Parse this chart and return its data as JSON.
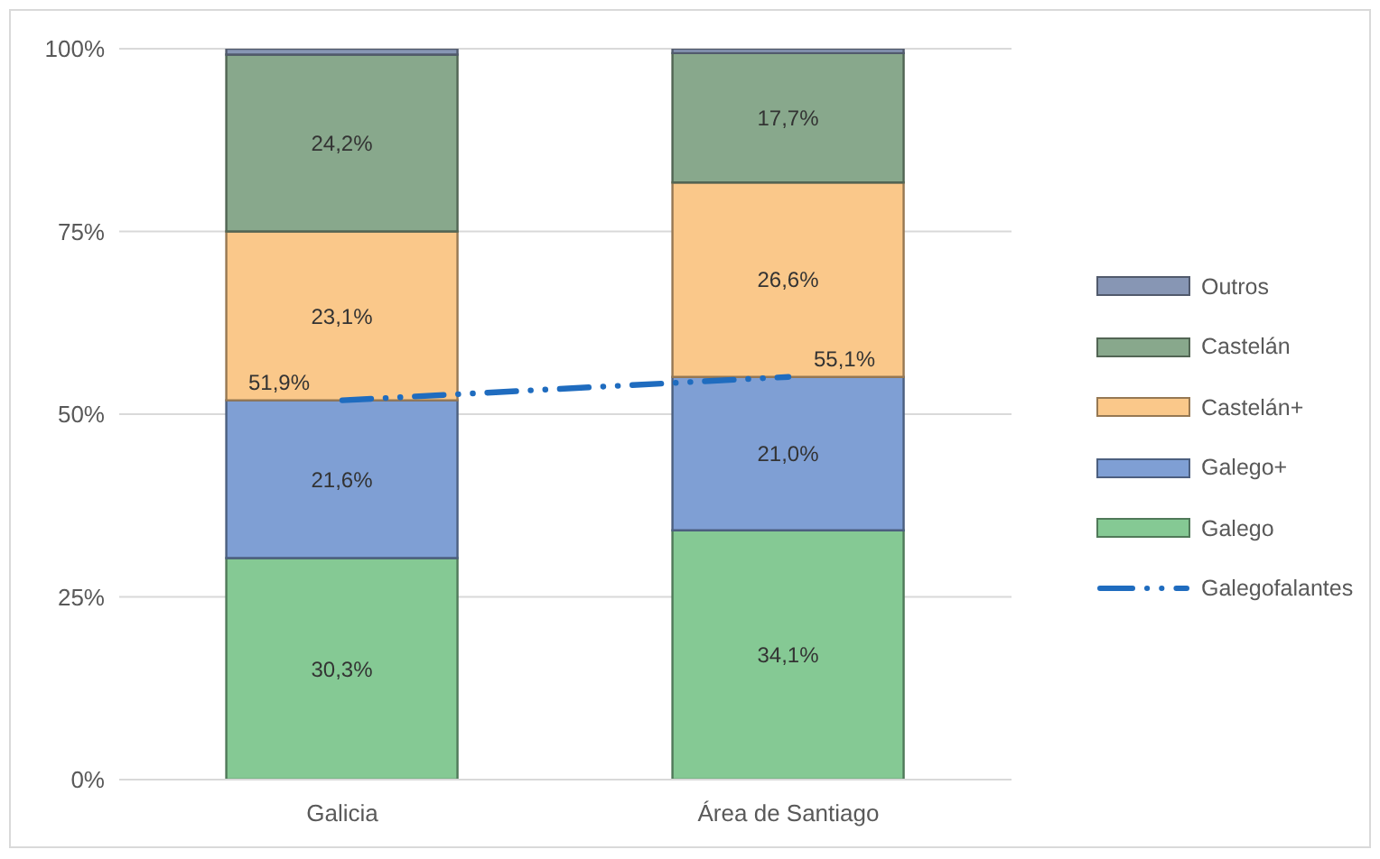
{
  "chart_data": {
    "type": "bar",
    "stacked": true,
    "categories": [
      "Galicia",
      "Área de Santiago"
    ],
    "ylim": [
      0,
      100
    ],
    "yticks": [
      {
        "value": 0,
        "label": "0%"
      },
      {
        "value": 25,
        "label": "25%"
      },
      {
        "value": 50,
        "label": "50%"
      },
      {
        "value": 75,
        "label": "75%"
      },
      {
        "value": 100,
        "label": "100%"
      }
    ],
    "grid": "y",
    "legend": "right",
    "series": [
      {
        "name": "Galego",
        "color": "#85c994",
        "values": [
          30.3,
          34.1
        ],
        "value_labels": [
          "30,3%",
          "34,1%"
        ]
      },
      {
        "name": "Galego+",
        "color": "#7f9fd4",
        "values": [
          21.6,
          21.0
        ],
        "value_labels": [
          "21,6%",
          "21,0%"
        ]
      },
      {
        "name": "Castelán+",
        "color": "#fac88a",
        "values": [
          23.1,
          26.6
        ],
        "value_labels": [
          "23,1%",
          "26,6%"
        ]
      },
      {
        "name": "Castelán",
        "color": "#88a88c",
        "values": [
          24.2,
          17.7
        ],
        "value_labels": [
          "24,2%",
          "17,7%"
        ]
      },
      {
        "name": "Outros",
        "color": "#8796b4",
        "values": [
          0.8,
          0.6
        ]
      },
      {
        "name": "Galegofalantes",
        "type": "line",
        "color": "#1f6cbf",
        "values": [
          51.9,
          55.1
        ],
        "value_labels": [
          "51,9%",
          "55,1%"
        ],
        "line_style": "dashed"
      }
    ]
  }
}
